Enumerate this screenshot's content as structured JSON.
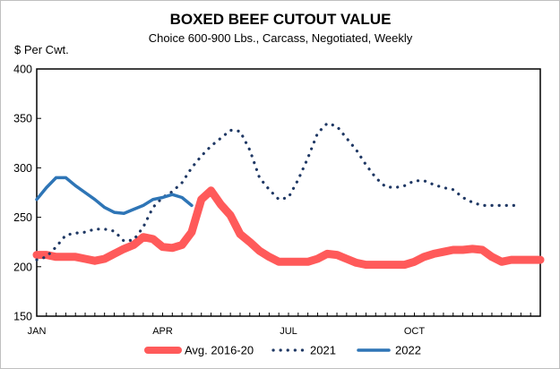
{
  "chart_data": {
    "type": "line",
    "title": "BOXED BEEF CUTOUT VALUE",
    "subtitle": "Choice 600-900 Lbs., Carcass, Negotiated, Weekly",
    "ylabel": "$ Per Cwt.",
    "xlabel": "",
    "ylim": [
      150,
      400
    ],
    "yticks": [
      150,
      200,
      250,
      300,
      350,
      400
    ],
    "xlim": [
      1,
      53
    ],
    "xtick_labels": [
      {
        "week": 1,
        "label": "JAN"
      },
      {
        "week": 14,
        "label": "APR"
      },
      {
        "week": 27,
        "label": "JUL"
      },
      {
        "week": 40,
        "label": "OCT"
      }
    ],
    "grid": false,
    "legend_position": "bottom",
    "series": [
      {
        "name": "Avg. 2016-20",
        "color": "#ff5a5a",
        "style": "solid-thick",
        "x": [
          1,
          2,
          3,
          4,
          5,
          6,
          7,
          8,
          9,
          10,
          11,
          12,
          13,
          14,
          15,
          16,
          17,
          18,
          19,
          20,
          21,
          22,
          23,
          24,
          25,
          26,
          27,
          28,
          29,
          30,
          31,
          32,
          33,
          34,
          35,
          36,
          37,
          38,
          39,
          40,
          41,
          42,
          43,
          44,
          45,
          46,
          47,
          48,
          49,
          50,
          51,
          52,
          53
        ],
        "values": [
          212,
          212,
          210,
          210,
          210,
          208,
          206,
          208,
          213,
          218,
          222,
          230,
          228,
          220,
          219,
          222,
          235,
          268,
          277,
          263,
          252,
          233,
          225,
          216,
          210,
          205,
          205,
          205,
          205,
          208,
          213,
          212,
          208,
          204,
          202,
          202,
          202,
          202,
          202,
          205,
          210,
          213,
          215,
          217,
          217,
          218,
          217,
          210,
          205,
          207,
          207,
          207,
          207
        ]
      },
      {
        "name": "2021",
        "color": "#1f3864",
        "style": "dotted",
        "x": [
          1,
          2,
          3,
          4,
          5,
          6,
          7,
          8,
          9,
          10,
          11,
          12,
          13,
          14,
          15,
          16,
          17,
          18,
          19,
          20,
          21,
          22,
          23,
          24,
          25,
          26,
          27,
          28,
          29,
          30,
          31,
          32,
          33,
          34,
          35,
          36,
          37,
          38,
          39,
          40,
          41,
          42,
          43,
          44,
          45,
          46,
          47,
          48,
          49,
          50,
          51
        ],
        "values": [
          207,
          210,
          220,
          232,
          234,
          235,
          238,
          238,
          236,
          226,
          227,
          240,
          260,
          270,
          276,
          285,
          300,
          312,
          322,
          330,
          338,
          337,
          318,
          290,
          278,
          268,
          270,
          288,
          310,
          335,
          345,
          342,
          330,
          318,
          303,
          290,
          281,
          280,
          282,
          287,
          287,
          283,
          280,
          278,
          270,
          265,
          262,
          262,
          262,
          262,
          262
        ]
      },
      {
        "name": "2022",
        "color": "#2e75b6",
        "style": "solid",
        "x": [
          1,
          2,
          3,
          4,
          5,
          6,
          7,
          8,
          9,
          10,
          11,
          12,
          13,
          14,
          15,
          16,
          17
        ],
        "values": [
          268,
          280,
          290,
          290,
          282,
          275,
          268,
          260,
          255,
          254,
          258,
          262,
          268,
          270,
          273,
          270,
          262
        ]
      }
    ]
  }
}
